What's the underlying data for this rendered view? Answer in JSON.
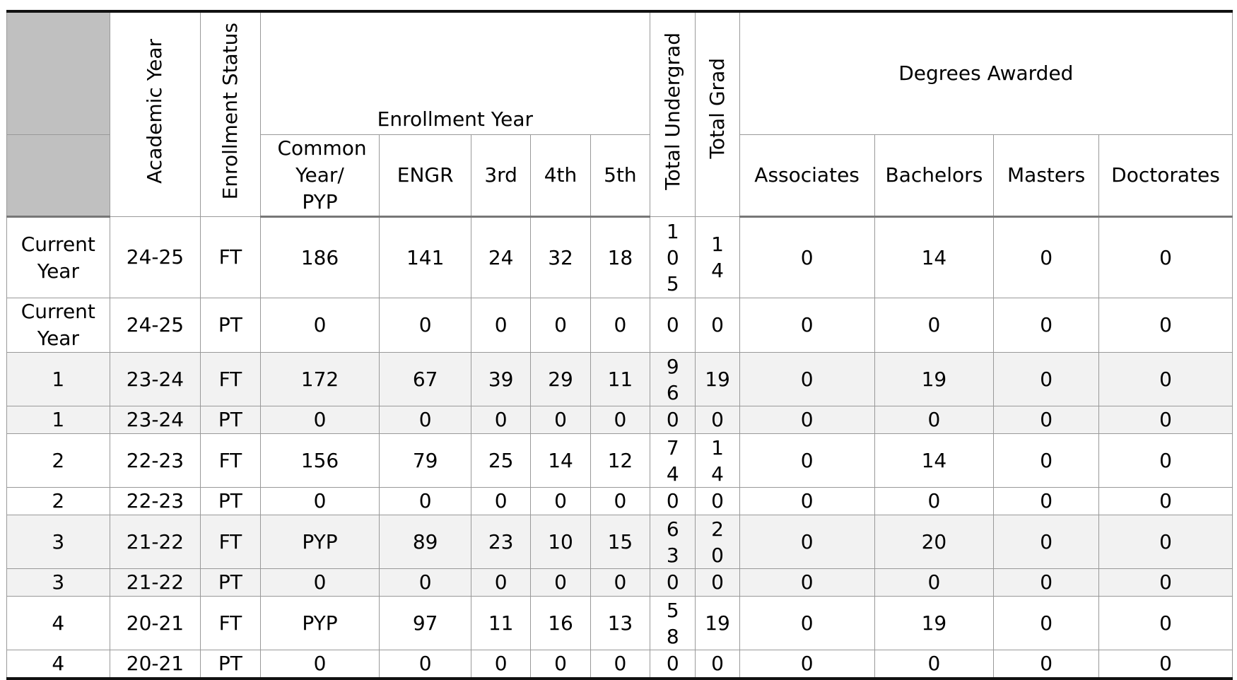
{
  "headers": {
    "academic_year": "Academic Year",
    "enrollment_status": "Enrollment Status",
    "enrollment_year": "Enrollment Year",
    "common_year": "Common Year/ PYP",
    "engr": "ENGR",
    "third": "3rd",
    "fourth": "4th",
    "fifth": "5th",
    "total_undergrad": "Total Undergrad",
    "total_grad": "Total Grad",
    "degrees_awarded": "Degrees Awarded",
    "associates": "Associates",
    "bachelors": "Bachelors",
    "masters": "Masters",
    "doctorates": "Doctorates"
  },
  "rows": [
    {
      "label": "Current Year",
      "ay": "24-25",
      "status": "FT",
      "common": "186",
      "engr": "141",
      "third": "24",
      "fourth": "32",
      "fifth": "18",
      "ug": "105",
      "grad": "14",
      "assoc": "0",
      "bach": "14",
      "mast": "0",
      "doct": "0"
    },
    {
      "label": "Current Year",
      "ay": "24-25",
      "status": "PT",
      "common": "0",
      "engr": "0",
      "third": "0",
      "fourth": "0",
      "fifth": "0",
      "ug": "0",
      "grad": "0",
      "assoc": "0",
      "bach": "0",
      "mast": "0",
      "doct": "0"
    },
    {
      "label": "1",
      "ay": "23-24",
      "status": "FT",
      "common": "172",
      "engr": "67",
      "third": "39",
      "fourth": "29",
      "fifth": "11",
      "ug": "96",
      "grad": "19",
      "assoc": "0",
      "bach": "19",
      "mast": "0",
      "doct": "0"
    },
    {
      "label": "1",
      "ay": "23-24",
      "status": "PT",
      "common": "0",
      "engr": "0",
      "third": "0",
      "fourth": "0",
      "fifth": "0",
      "ug": "0",
      "grad": "0",
      "assoc": "0",
      "bach": "0",
      "mast": "0",
      "doct": "0"
    },
    {
      "label": "2",
      "ay": "22-23",
      "status": "FT",
      "common": "156",
      "engr": "79",
      "third": "25",
      "fourth": "14",
      "fifth": "12",
      "ug": "74",
      "grad": "14",
      "assoc": "0",
      "bach": "14",
      "mast": "0",
      "doct": "0"
    },
    {
      "label": "2",
      "ay": "22-23",
      "status": "PT",
      "common": "0",
      "engr": "0",
      "third": "0",
      "fourth": "0",
      "fifth": "0",
      "ug": "0",
      "grad": "0",
      "assoc": "0",
      "bach": "0",
      "mast": "0",
      "doct": "0"
    },
    {
      "label": "3",
      "ay": "21-22",
      "status": "FT",
      "common": "PYP",
      "engr": "89",
      "third": "23",
      "fourth": "10",
      "fifth": "15",
      "ug": "63",
      "grad": "20",
      "assoc": "0",
      "bach": "20",
      "mast": "0",
      "doct": "0"
    },
    {
      "label": "3",
      "ay": "21-22",
      "status": "PT",
      "common": "0",
      "engr": "0",
      "third": "0",
      "fourth": "0",
      "fifth": "0",
      "ug": "0",
      "grad": "0",
      "assoc": "0",
      "bach": "0",
      "mast": "0",
      "doct": "0"
    },
    {
      "label": "4",
      "ay": "20-21",
      "status": "FT",
      "common": "PYP",
      "engr": "97",
      "third": "11",
      "fourth": "16",
      "fifth": "13",
      "ug": "58",
      "grad": "19",
      "assoc": "0",
      "bach": "19",
      "mast": "0",
      "doct": "0"
    },
    {
      "label": "4",
      "ay": "20-21",
      "status": "PT",
      "common": "0",
      "engr": "0",
      "third": "0",
      "fourth": "0",
      "fifth": "0",
      "ug": "0",
      "grad": "0",
      "assoc": "0",
      "bach": "0",
      "mast": "0",
      "doct": "0"
    }
  ]
}
